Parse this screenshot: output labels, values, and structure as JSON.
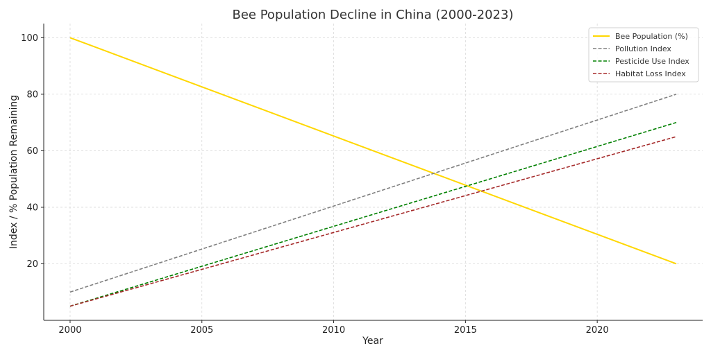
{
  "chart_data": {
    "type": "line",
    "title": "Bee Population Decline in China (2000-2023)",
    "xlabel": "Year",
    "ylabel": "Index / % Population Remaining",
    "xlim": [
      1999,
      2024
    ],
    "ylim": [
      0,
      105
    ],
    "x": [
      2000,
      2023
    ],
    "xticks": [
      2000,
      2005,
      2010,
      2015,
      2020
    ],
    "yticks": [
      20,
      40,
      60,
      80,
      100
    ],
    "grid": true,
    "legend_position": "top-right",
    "series": [
      {
        "name": "Bee Population (%)",
        "values": [
          100,
          20
        ],
        "color": "#FFD700",
        "dash": "solid"
      },
      {
        "name": "Pollution Index",
        "values": [
          10,
          80
        ],
        "color": "#808080",
        "dash": "dashed"
      },
      {
        "name": "Pesticide Use Index",
        "values": [
          5,
          70
        ],
        "color": "#008000",
        "dash": "dashed"
      },
      {
        "name": "Habitat Loss Index",
        "values": [
          5,
          65
        ],
        "color": "#A52A2A",
        "dash": "dashed"
      }
    ]
  }
}
